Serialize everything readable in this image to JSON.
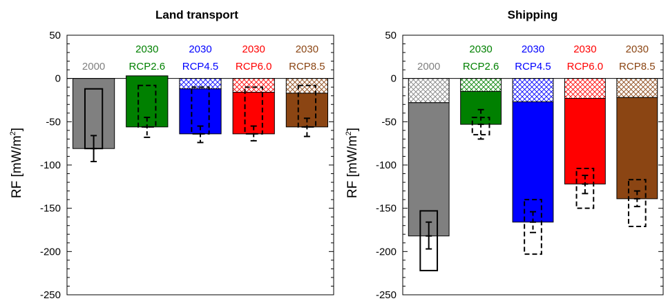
{
  "chart_data": [
    {
      "type": "bar",
      "title": "Land transport",
      "ylabel": "RF [mW/m",
      "ylabel_sup": "2",
      "ylabel_suffix": "]",
      "ylim": [
        -250,
        50
      ],
      "yticks": [
        50,
        0,
        -50,
        -100,
        -150,
        -200,
        -250
      ],
      "categories": [
        {
          "year": "2000",
          "scenario": "",
          "color": "#808080"
        },
        {
          "year": "2030",
          "scenario": "RCP2.6",
          "color": "#008000"
        },
        {
          "year": "2030",
          "scenario": "RCP4.5",
          "color": "#0000ff"
        },
        {
          "year": "2030",
          "scenario": "RCP6.0",
          "color": "#ff0000"
        },
        {
          "year": "2030",
          "scenario": "RCP8.5",
          "color": "#8b4513"
        }
      ],
      "hatched_top": [
        0,
        3,
        -12,
        -16,
        -17
      ],
      "values": [
        -81,
        -56,
        -64,
        -64,
        -56
      ],
      "outline_box": [
        {
          "top": -12,
          "bottom": -81,
          "dashed": false
        },
        {
          "top": -8,
          "bottom": -56,
          "dashed": true
        },
        {
          "top": -10,
          "bottom": -64,
          "dashed": true
        },
        {
          "top": -10,
          "bottom": -64,
          "dashed": true
        },
        {
          "top": -8,
          "bottom": -56,
          "dashed": true
        }
      ],
      "error_bars": [
        {
          "center": -81,
          "low": -96,
          "high": -66,
          "dashed": false
        },
        {
          "center": -56,
          "low": -68,
          "high": -45,
          "dashed": true
        },
        {
          "center": -64,
          "low": -74,
          "high": -55,
          "dashed": true
        },
        {
          "center": -64,
          "low": -72,
          "high": -55,
          "dashed": true
        },
        {
          "center": -56,
          "low": -67,
          "high": -46,
          "dashed": true
        }
      ]
    },
    {
      "type": "bar",
      "title": "Shipping",
      "ylabel": "RF [mW/m",
      "ylabel_sup": "2",
      "ylabel_suffix": "]",
      "ylim": [
        -250,
        50
      ],
      "yticks": [
        50,
        0,
        -50,
        -100,
        -150,
        -200,
        -250
      ],
      "categories": [
        {
          "year": "2000",
          "scenario": "",
          "color": "#808080"
        },
        {
          "year": "2030",
          "scenario": "RCP2.6",
          "color": "#008000"
        },
        {
          "year": "2030",
          "scenario": "RCP4.5",
          "color": "#0000ff"
        },
        {
          "year": "2030",
          "scenario": "RCP6.0",
          "color": "#ff0000"
        },
        {
          "year": "2030",
          "scenario": "RCP8.5",
          "color": "#8b4513"
        }
      ],
      "hatched_top": [
        -28,
        -15,
        -27,
        -23,
        -22
      ],
      "values": [
        -182,
        -53,
        -166,
        -122,
        -139
      ],
      "outline_box": [
        {
          "top": -153,
          "bottom": -222,
          "dashed": false
        },
        {
          "top": -45,
          "bottom": -65,
          "dashed": true
        },
        {
          "top": -140,
          "bottom": -203,
          "dashed": true
        },
        {
          "top": -104,
          "bottom": -150,
          "dashed": true
        },
        {
          "top": -117,
          "bottom": -171,
          "dashed": true
        }
      ],
      "error_bars": [
        {
          "center": -182,
          "low": -197,
          "high": -166,
          "dashed": false
        },
        {
          "center": -53,
          "low": -70,
          "high": -36,
          "dashed": true
        },
        {
          "center": -166,
          "low": -178,
          "high": -154,
          "dashed": true
        },
        {
          "center": -122,
          "low": -133,
          "high": -112,
          "dashed": true
        },
        {
          "center": -139,
          "low": -148,
          "high": -130,
          "dashed": true
        }
      ]
    }
  ]
}
